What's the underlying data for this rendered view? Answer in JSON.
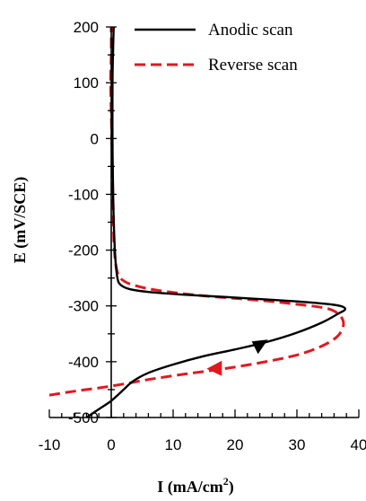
{
  "chart_data": {
    "type": "line",
    "title": "",
    "xlabel": "I (mA/cm",
    "xlabel_sup": "2",
    "xlabel_close": ")",
    "ylabel": "E (mV/SCE)",
    "xlim": [
      -10,
      40
    ],
    "ylim": [
      -500,
      200
    ],
    "x_ticks": [
      -10,
      0,
      10,
      20,
      30,
      40
    ],
    "y_ticks": [
      200,
      100,
      0,
      -100,
      -200,
      -300,
      -400,
      -500
    ],
    "x_tick_labels": [
      "-10",
      "0",
      "10",
      "20",
      "30",
      "40"
    ],
    "y_tick_labels": [
      "200",
      "100",
      "0",
      "-100",
      "-200",
      "-300",
      "-400",
      "-500"
    ],
    "grid": false,
    "legend_position": "top-right",
    "series": [
      {
        "name": "Anodic scan",
        "color": "#000000",
        "dash": "solid",
        "arrow": "up-right",
        "points": [
          [
            -4,
            -500
          ],
          [
            -2,
            -485
          ],
          [
            0,
            -470
          ],
          [
            2,
            -450
          ],
          [
            3.5,
            -435
          ],
          [
            6,
            -420
          ],
          [
            10,
            -405
          ],
          [
            15,
            -390
          ],
          [
            20,
            -378
          ],
          [
            25,
            -365
          ],
          [
            30,
            -348
          ],
          [
            34,
            -330
          ],
          [
            36.5,
            -315
          ],
          [
            37.8,
            -305
          ],
          [
            36,
            -298
          ],
          [
            30,
            -292
          ],
          [
            20,
            -285
          ],
          [
            12,
            -280
          ],
          [
            6,
            -275
          ],
          [
            3,
            -270
          ],
          [
            1.5,
            -262
          ],
          [
            1,
            -250
          ],
          [
            0.7,
            -220
          ],
          [
            0.5,
            -180
          ],
          [
            0.3,
            -100
          ],
          [
            0.2,
            0
          ],
          [
            0.2,
            100
          ],
          [
            0.3,
            160
          ],
          [
            0.4,
            200
          ]
        ]
      },
      {
        "name": "Reverse scan",
        "color": "#e0191f",
        "dash": "dashed",
        "arrow": "left",
        "points": [
          [
            -10,
            -460
          ],
          [
            -6,
            -453
          ],
          [
            -2,
            -447
          ],
          [
            2,
            -440
          ],
          [
            6,
            -432
          ],
          [
            12,
            -422
          ],
          [
            18,
            -413
          ],
          [
            24,
            -402
          ],
          [
            30,
            -388
          ],
          [
            34,
            -372
          ],
          [
            36.5,
            -355
          ],
          [
            37.5,
            -335
          ],
          [
            37,
            -318
          ],
          [
            35,
            -305
          ],
          [
            30,
            -297
          ],
          [
            24,
            -290
          ],
          [
            15,
            -282
          ],
          [
            8,
            -273
          ],
          [
            4,
            -264
          ],
          [
            2,
            -255
          ],
          [
            1,
            -240
          ],
          [
            0.5,
            -200
          ],
          [
            0.3,
            -120
          ],
          [
            0.1,
            0
          ],
          [
            -0.1,
            100
          ],
          [
            0,
            150
          ],
          [
            0,
            200
          ]
        ]
      }
    ]
  }
}
